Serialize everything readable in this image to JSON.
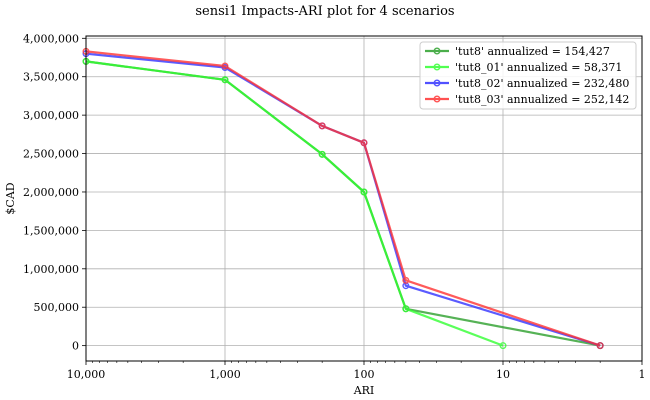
{
  "chart_data": {
    "type": "line",
    "title": "sensi1 Impacts-ARI plot for 4 scenarios",
    "xlabel": "ARI",
    "ylabel": "$CAD",
    "x_scale": "log",
    "x_reversed": true,
    "xlim": [
      10000,
      1
    ],
    "ylim": [
      -200000,
      4030000
    ],
    "x_ticks": [
      10000,
      1000,
      100,
      10,
      1
    ],
    "x_tick_labels": [
      "10,000",
      "1,000",
      "100",
      "10",
      "1"
    ],
    "y_ticks": [
      0,
      500000,
      1000000,
      1500000,
      2000000,
      2500000,
      3000000,
      3500000,
      4000000
    ],
    "y_tick_labels": [
      "0",
      "500,000",
      "1,000,000",
      "1,500,000",
      "2,000,000",
      "2,500,000",
      "3,000,000",
      "3,500,000",
      "4,000,000"
    ],
    "grid": true,
    "legend_position": "top-right",
    "series": [
      {
        "name": "'tut8' annualized = 154,427",
        "color": "#2ca02c",
        "x": [
          10000,
          1000,
          200,
          100,
          50,
          2
        ],
        "values": [
          3700000,
          3460000,
          2490000,
          2000000,
          480000,
          0
        ]
      },
      {
        "name": "'tut8_01' annualized = 58,371",
        "color": "#33ff33",
        "x": [
          10000,
          1000,
          200,
          100,
          50,
          10
        ],
        "values": [
          3700000,
          3460000,
          2490000,
          2000000,
          480000,
          0
        ]
      },
      {
        "name": "'tut8_02' annualized = 232,480",
        "color": "#3333ff",
        "x": [
          10000,
          1000,
          200,
          100,
          50,
          2
        ],
        "values": [
          3800000,
          3620000,
          2860000,
          2640000,
          780000,
          0
        ]
      },
      {
        "name": "'tut8_03' annualized = 252,142",
        "color": "#ff3333",
        "x": [
          10000,
          1000,
          200,
          100,
          50,
          2
        ],
        "values": [
          3830000,
          3640000,
          2860000,
          2640000,
          850000,
          0
        ]
      }
    ]
  }
}
